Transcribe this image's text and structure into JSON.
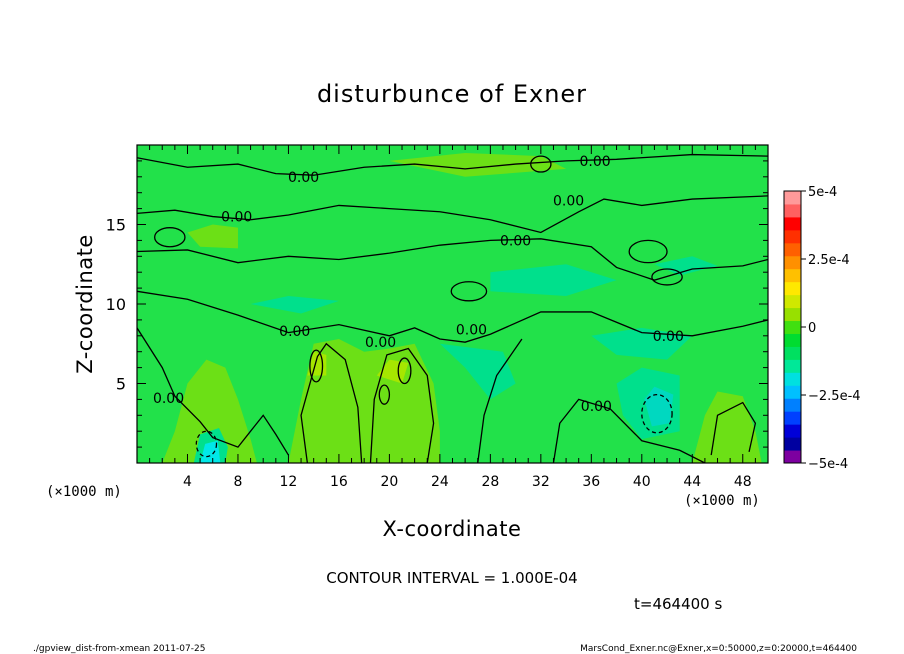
{
  "chart_data": {
    "type": "contour",
    "title": "disturbunce of Exner",
    "xlabel": "X-coordinate",
    "ylabel": "Z-coordinate",
    "x_unit_left": "(×1000 m)",
    "x_unit_right": "(×1000 m)",
    "xlim": [
      0,
      50
    ],
    "ylim": [
      0,
      20
    ],
    "x_ticks": [
      4,
      8,
      12,
      16,
      20,
      24,
      28,
      32,
      36,
      40,
      44,
      48
    ],
    "y_ticks": [
      5,
      10,
      15
    ],
    "contour_labels": [
      {
        "text": "0.00",
        "x": 36.3,
        "y": 19.0
      },
      {
        "text": "0.00",
        "x": 13.2,
        "y": 18.0
      },
      {
        "text": "0.00",
        "x": 34.2,
        "y": 16.5
      },
      {
        "text": "0.00",
        "x": 7.9,
        "y": 15.5
      },
      {
        "text": "0.00",
        "x": 30.0,
        "y": 14.0
      },
      {
        "text": "0.00",
        "x": 12.5,
        "y": 8.3
      },
      {
        "text": "0.00",
        "x": 19.3,
        "y": 7.6
      },
      {
        "text": "0.00",
        "x": 26.5,
        "y": 8.4
      },
      {
        "text": "0.00",
        "x": 42.1,
        "y": 8.0
      },
      {
        "text": "0.00",
        "x": 2.5,
        "y": 4.1
      },
      {
        "text": "0.00",
        "x": 36.4,
        "y": 3.6
      }
    ],
    "colorbar": {
      "ticks": [
        "5e-4",
        "2.5e-4",
        "0",
        "−2.5e-4",
        "−5e-4"
      ],
      "range": [
        -0.0005,
        0.0005
      ],
      "colors": [
        "#7d00a0",
        "#0000a0",
        "#0000d8",
        "#0040ff",
        "#0080ff",
        "#00c0ff",
        "#00e0e0",
        "#00e898",
        "#00e060",
        "#00dc30",
        "#40e010",
        "#98e000",
        "#d0e800",
        "#ffe800",
        "#ffc000",
        "#ff9000",
        "#ff6000",
        "#ff3000",
        "#ff0000",
        "#ff6060",
        "#ff9a9a"
      ]
    },
    "contour_interval": "CONTOUR INTERVAL = 1.000E-04",
    "time": "t=464400 s"
  },
  "footer": {
    "left": "./gpview_dist-from-xmean  2011-07-25",
    "right": "MarsCond_Exner.nc@Exner,x=0:50000,z=0:20000,t=464400"
  },
  "colors": {
    "field_base": "#22e14a",
    "field_warm": "#6ce016",
    "field_warmer": "#a6e600",
    "field_cool": "#00e08c",
    "field_cooler": "#00d8c0",
    "field_coolest": "#00e8e8"
  }
}
